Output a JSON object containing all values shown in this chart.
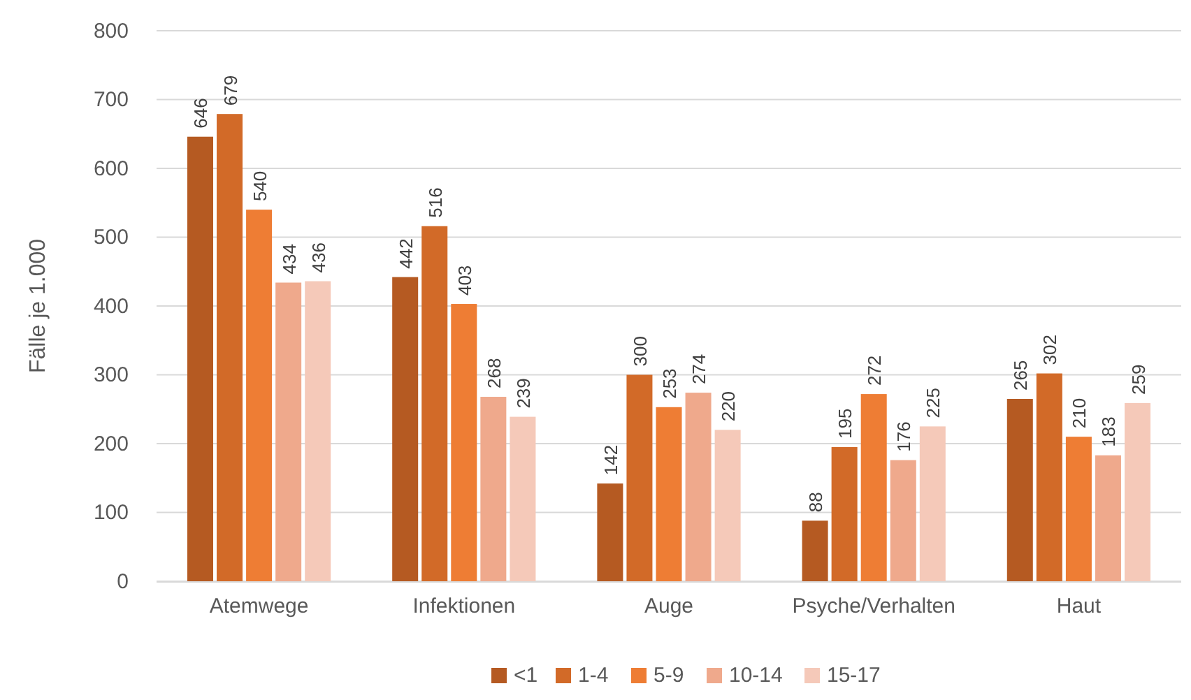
{
  "chart_data": {
    "type": "bar",
    "ylabel": "Fälle je 1.000",
    "categories": [
      "Atemwege",
      "Infektionen",
      "Auge",
      "Psyche/Verhalten",
      "Haut"
    ],
    "series": [
      {
        "name": "<1",
        "color": "#b55a22",
        "values": [
          646,
          442,
          142,
          88,
          265
        ]
      },
      {
        "name": "1-4",
        "color": "#d26a28",
        "values": [
          679,
          516,
          300,
          195,
          302
        ]
      },
      {
        "name": "5-9",
        "color": "#ee7d34",
        "values": [
          540,
          403,
          253,
          272,
          210
        ]
      },
      {
        "name": "10-14",
        "color": "#efa98c",
        "values": [
          434,
          268,
          274,
          176,
          183
        ]
      },
      {
        "name": "15-17",
        "color": "#f5c9b9",
        "values": [
          436,
          239,
          220,
          225,
          259
        ]
      }
    ],
    "ylim": [
      0,
      800
    ],
    "yticks": [
      0,
      100,
      200,
      300,
      400,
      500,
      600,
      700,
      800
    ],
    "grid": "y",
    "data_labels": true,
    "legend": "bottom"
  }
}
